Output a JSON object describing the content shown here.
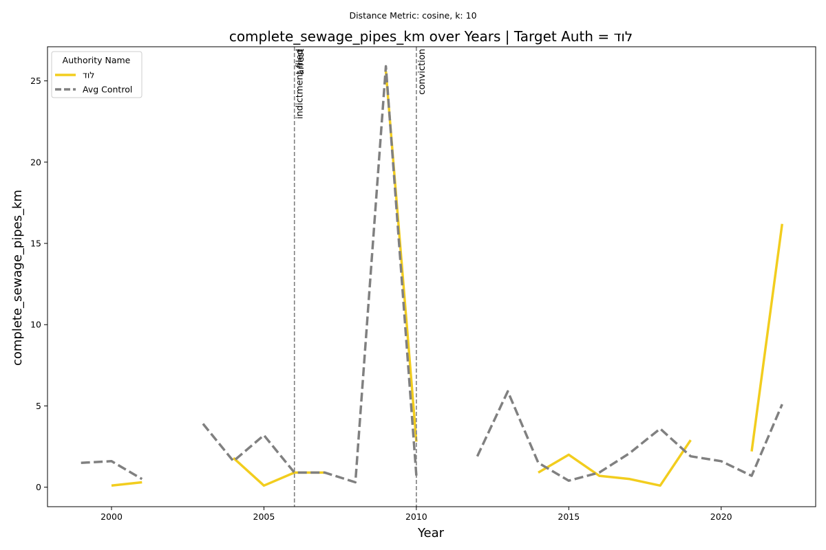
{
  "chart_data": {
    "type": "line",
    "suptitle": "Distance Metric: cosine, k: 10",
    "title": "complete_sewage_pipes_km over Years | Target Auth = לוד",
    "xlabel": "Year",
    "ylabel": "complete_sewage_pipes_km",
    "xlim": [
      1997.9,
      2023.1
    ],
    "ylim": [
      -1.2,
      27.1
    ],
    "xticks": [
      2000,
      2005,
      2010,
      2015,
      2020
    ],
    "yticks": [
      0,
      5,
      10,
      15,
      20,
      25
    ],
    "grid": false,
    "legend": {
      "title": "Authority Name",
      "placement": "top-left"
    },
    "series": [
      {
        "name": "לוד",
        "color": "#f2cd1e",
        "style": "solid",
        "points": [
          [
            2000,
            0.1
          ],
          [
            2001,
            0.3
          ],
          [
            2002,
            null
          ],
          [
            2003,
            null
          ],
          [
            2004,
            1.8
          ],
          [
            2005,
            0.1
          ],
          [
            2006,
            0.9
          ],
          [
            2007,
            0.9
          ],
          [
            2008,
            null
          ],
          [
            2009,
            25.6
          ],
          [
            2010,
            2.8
          ],
          [
            2011,
            null
          ],
          [
            2012,
            null
          ],
          [
            2013,
            null
          ],
          [
            2014,
            0.9
          ],
          [
            2015,
            2.0
          ],
          [
            2016,
            0.7
          ],
          [
            2017,
            0.5
          ],
          [
            2018,
            0.1
          ],
          [
            2019,
            2.9
          ],
          [
            2020,
            null
          ],
          [
            2021,
            2.2
          ],
          [
            2022,
            16.2
          ]
        ]
      },
      {
        "name": "Avg Control",
        "color": "#808080",
        "style": "dashed",
        "points": [
          [
            1999,
            1.5
          ],
          [
            2000,
            1.6
          ],
          [
            2001,
            0.5
          ],
          [
            2002,
            null
          ],
          [
            2003,
            3.9
          ],
          [
            2004,
            1.6
          ],
          [
            2005,
            3.2
          ],
          [
            2006,
            0.9
          ],
          [
            2007,
            0.9
          ],
          [
            2008,
            0.3
          ],
          [
            2009,
            25.9
          ],
          [
            2010,
            0.7
          ],
          [
            2011,
            null
          ],
          [
            2012,
            1.9
          ],
          [
            2013,
            5.9
          ],
          [
            2014,
            1.5
          ],
          [
            2015,
            0.4
          ],
          [
            2016,
            0.9
          ],
          [
            2017,
            2.1
          ],
          [
            2018,
            3.6
          ],
          [
            2019,
            1.9
          ],
          [
            2020,
            1.6
          ],
          [
            2021,
            0.7
          ],
          [
            2022,
            5.1
          ]
        ]
      }
    ],
    "events": [
      {
        "x": 2006,
        "label": "indictment filed"
      },
      {
        "x": 2006,
        "label": "arrest"
      },
      {
        "x": 2010,
        "label": "conviction"
      }
    ]
  }
}
